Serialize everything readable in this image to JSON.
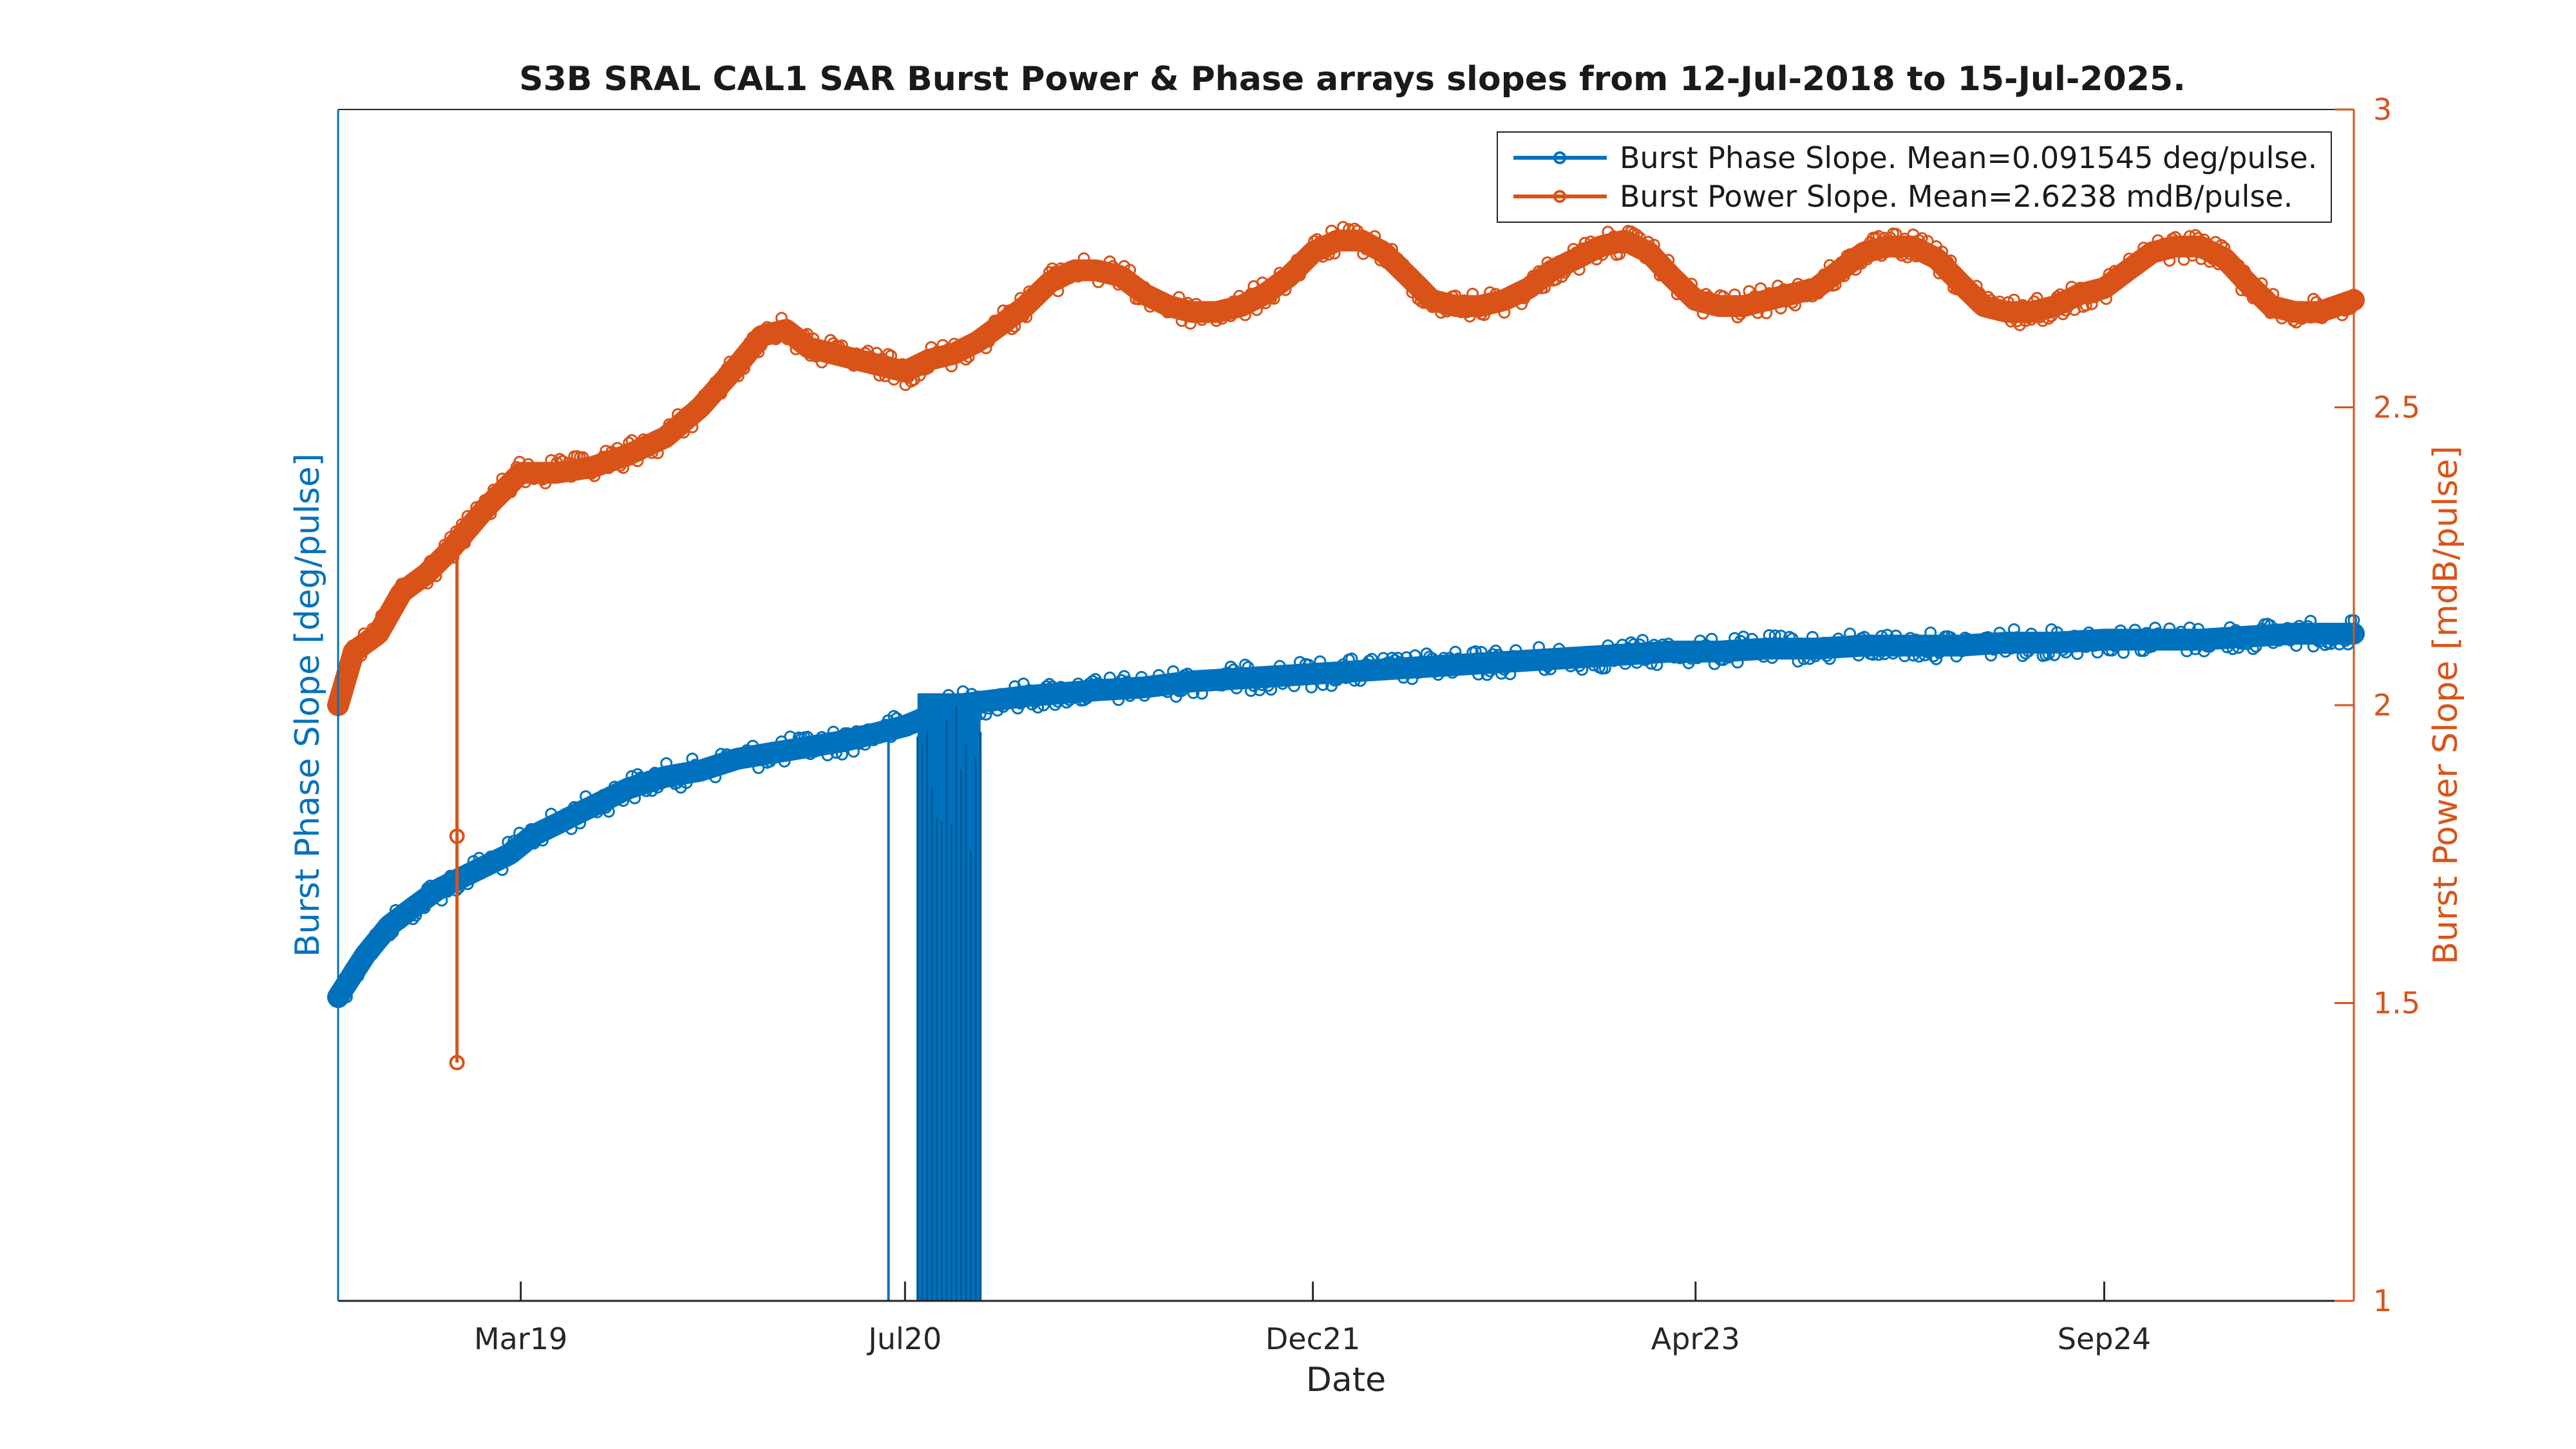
{
  "chart_data": {
    "type": "line",
    "title": "S3B SRAL CAL1 SAR Burst Power & Phase arrays slopes from 12-Jul-2018 to 15-Jul-2025.",
    "xlabel": "Date",
    "ylabel_left": "Burst Phase Slope [deg/pulse]",
    "ylabel_right": "Burst Power Slope [mdB/pulse]",
    "xlim": [
      "2018-07-12",
      "2025-07-15"
    ],
    "x_ticks": [
      {
        "date": "2019-03-01",
        "label": "Mar19"
      },
      {
        "date": "2020-07-01",
        "label": "Jul20"
      },
      {
        "date": "2021-12-01",
        "label": "Dec21"
      },
      {
        "date": "2023-04-01",
        "label": "Apr23"
      },
      {
        "date": "2024-09-01",
        "label": "Sep24"
      }
    ],
    "ylim_right": [
      1,
      3
    ],
    "y_ticks_right": [
      {
        "value": 1,
        "label": "1"
      },
      {
        "value": 1.5,
        "label": "1.5"
      },
      {
        "value": 2,
        "label": "2"
      },
      {
        "value": 2.5,
        "label": "2.5"
      },
      {
        "value": 3,
        "label": "3"
      }
    ],
    "grid": false,
    "legend_position": "top-right",
    "colors": {
      "phase": "#0072BD",
      "power": "#D95319",
      "axis_left": "#0072BD",
      "axis_right": "#D95319"
    },
    "series": [
      {
        "name": "Burst Phase Slope. Mean=0.091545 deg/pulse.",
        "axis": "right-scale",
        "x": [
          "2018-07-12",
          "2018-08-15",
          "2018-09-15",
          "2018-10-15",
          "2018-11-15",
          "2018-12-15",
          "2019-01-15",
          "2019-02-15",
          "2019-03-15",
          "2019-04-15",
          "2019-05-15",
          "2019-06-15",
          "2019-07-15",
          "2019-09-01",
          "2019-10-15",
          "2019-12-01",
          "2020-01-15",
          "2020-03-01",
          "2020-04-15",
          "2020-06-01",
          "2020-07-01",
          "2020-08-15",
          "2020-09-01",
          "2020-10-01",
          "2020-11-01",
          "2020-12-01",
          "2021-01-15",
          "2021-03-01",
          "2021-05-01",
          "2021-07-01",
          "2021-09-01",
          "2021-11-01",
          "2022-01-01",
          "2022-03-01",
          "2022-05-01",
          "2022-07-01",
          "2022-09-01",
          "2022-11-01",
          "2023-01-01",
          "2023-03-01",
          "2023-05-01",
          "2023-07-01",
          "2023-09-01",
          "2023-11-01",
          "2024-01-01",
          "2024-03-01",
          "2024-05-01",
          "2024-07-01",
          "2024-09-01",
          "2024-11-01",
          "2025-01-01",
          "2025-03-01",
          "2025-05-01",
          "2025-07-15"
        ],
        "y": [
          1.51,
          1.58,
          1.63,
          1.66,
          1.69,
          1.71,
          1.73,
          1.75,
          1.78,
          1.8,
          1.82,
          1.84,
          1.86,
          1.88,
          1.89,
          1.91,
          1.92,
          1.93,
          1.94,
          1.955,
          1.965,
          1.99,
          2.0,
          2.005,
          2.01,
          2.015,
          2.02,
          2.025,
          2.03,
          2.04,
          2.045,
          2.05,
          2.055,
          2.06,
          2.065,
          2.07,
          2.075,
          2.08,
          2.085,
          2.09,
          2.09,
          2.095,
          2.095,
          2.1,
          2.1,
          2.1,
          2.105,
          2.105,
          2.11,
          2.11,
          2.11,
          2.115,
          2.12,
          2.12
        ]
      },
      {
        "name": "Burst Power Slope. Mean=2.6238 mdB/pulse.",
        "axis": "right",
        "x": [
          "2018-07-12",
          "2018-08-01",
          "2018-09-01",
          "2018-10-01",
          "2018-11-01",
          "2018-12-01",
          "2019-01-15",
          "2019-03-01",
          "2019-04-15",
          "2019-06-01",
          "2019-07-15",
          "2019-09-01",
          "2019-10-15",
          "2019-12-01",
          "2020-01-01",
          "2020-02-01",
          "2020-03-01",
          "2020-04-01",
          "2020-05-01",
          "2020-06-01",
          "2020-07-01",
          "2020-08-01",
          "2020-09-01",
          "2020-10-01",
          "2020-11-01",
          "2020-12-01",
          "2021-01-01",
          "2021-02-01",
          "2021-03-01",
          "2021-04-01",
          "2021-05-01",
          "2021-06-01",
          "2021-07-01",
          "2021-08-01",
          "2021-09-01",
          "2021-10-01",
          "2021-11-01",
          "2021-12-01",
          "2022-01-01",
          "2022-02-01",
          "2022-03-01",
          "2022-04-01",
          "2022-05-01",
          "2022-06-01",
          "2022-07-01",
          "2022-08-01",
          "2022-09-01",
          "2022-10-01",
          "2022-11-01",
          "2022-12-01",
          "2023-01-01",
          "2023-02-01",
          "2023-03-01",
          "2023-04-01",
          "2023-05-01",
          "2023-06-01",
          "2023-07-01",
          "2023-08-01",
          "2023-09-01",
          "2023-10-01",
          "2023-11-01",
          "2023-12-01",
          "2024-01-01",
          "2024-02-01",
          "2024-03-01",
          "2024-04-01",
          "2024-05-01",
          "2024-06-01",
          "2024-07-01",
          "2024-08-01",
          "2024-09-01",
          "2024-10-01",
          "2024-11-01",
          "2024-12-01",
          "2025-01-01",
          "2025-02-01",
          "2025-03-01",
          "2025-04-01",
          "2025-05-01",
          "2025-06-01",
          "2025-07-15"
        ],
        "y": [
          2.0,
          2.09,
          2.12,
          2.19,
          2.22,
          2.26,
          2.33,
          2.39,
          2.39,
          2.4,
          2.42,
          2.45,
          2.5,
          2.57,
          2.62,
          2.63,
          2.6,
          2.59,
          2.58,
          2.57,
          2.56,
          2.58,
          2.59,
          2.61,
          2.64,
          2.67,
          2.71,
          2.73,
          2.73,
          2.72,
          2.69,
          2.67,
          2.66,
          2.66,
          2.67,
          2.69,
          2.72,
          2.76,
          2.78,
          2.78,
          2.76,
          2.72,
          2.68,
          2.67,
          2.67,
          2.68,
          2.7,
          2.73,
          2.75,
          2.77,
          2.78,
          2.76,
          2.72,
          2.68,
          2.67,
          2.67,
          2.68,
          2.69,
          2.7,
          2.73,
          2.76,
          2.77,
          2.77,
          2.75,
          2.71,
          2.67,
          2.66,
          2.66,
          2.67,
          2.69,
          2.7,
          2.73,
          2.76,
          2.77,
          2.77,
          2.75,
          2.71,
          2.67,
          2.66,
          2.66,
          2.68
        ]
      }
    ],
    "annotations": [
      {
        "type": "phase-dropout",
        "x_start": "2020-06-10",
        "x_end": "2020-10-05",
        "y_bottom": 1.0
      },
      {
        "type": "power-spike",
        "x": "2018-12-10",
        "y": 1.4
      }
    ]
  }
}
